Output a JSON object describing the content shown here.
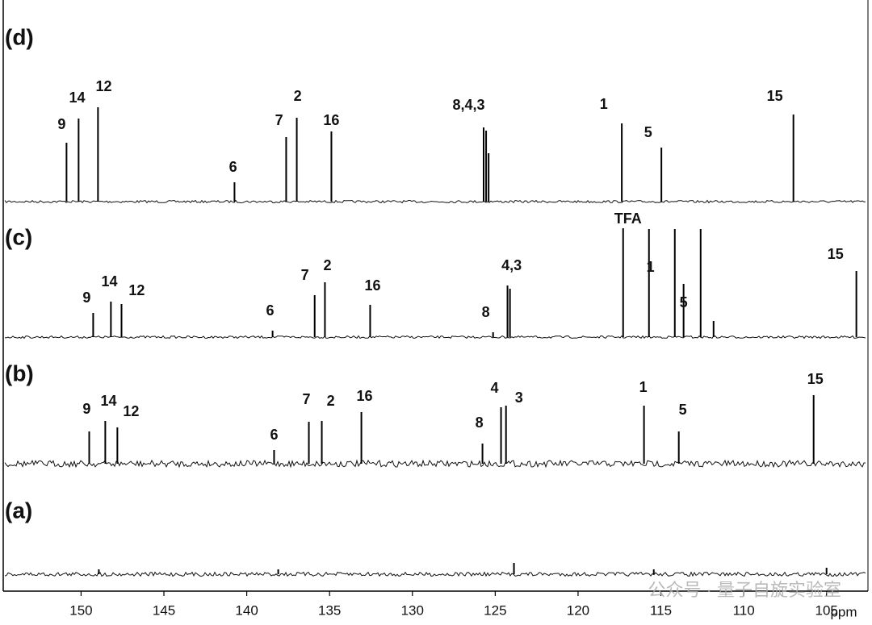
{
  "chart_data": [
    {
      "type": "spectrum",
      "title": "(d)",
      "xlim": [
        154.7,
        102.5
      ],
      "x": [
        150.88,
        150.15,
        148.98,
        140.74,
        137.62,
        136.98,
        134.89,
        125.7,
        125.55,
        125.4,
        117.36,
        114.97,
        107.0
      ],
      "values": [
        73,
        103,
        117,
        24,
        80,
        104,
        87,
        92,
        88,
        60,
        97,
        67,
        108
      ],
      "annotations": [
        {
          "text": "9",
          "x": 151.17,
          "y": 95
        },
        {
          "text": "14",
          "x": 150.24,
          "y": 128
        },
        {
          "text": "12",
          "x": 148.63,
          "y": 142
        },
        {
          "text": "6",
          "x": 140.83,
          "y": 42
        },
        {
          "text": "7",
          "x": 138.05,
          "y": 100
        },
        {
          "text": "2",
          "x": 136.93,
          "y": 130
        },
        {
          "text": "16",
          "x": 134.89,
          "y": 100
        },
        {
          "text": "8,4,3",
          "x": 126.6,
          "y": 119
        },
        {
          "text": "1",
          "x": 118.45,
          "y": 120
        },
        {
          "text": "5",
          "x": 115.77,
          "y": 85
        },
        {
          "text": "15",
          "x": 108.12,
          "y": 130
        }
      ]
    },
    {
      "type": "spectrum",
      "title": "(c)",
      "xlim": [
        154.7,
        102.5
      ],
      "x": [
        149.27,
        148.2,
        147.56,
        138.44,
        135.9,
        135.28,
        132.55,
        125.13,
        124.26,
        124.11,
        117.28,
        115.72,
        114.16,
        112.6,
        113.63,
        111.82,
        103.2
      ],
      "values": [
        30,
        44,
        41,
        8,
        52,
        68,
        40,
        6,
        64,
        60,
        135,
        134,
        134,
        134,
        66,
        20,
        82
      ],
      "annotations": [
        {
          "text": "9",
          "x": 149.66,
          "y": 48
        },
        {
          "text": "14",
          "x": 148.29,
          "y": 68
        },
        {
          "text": "12",
          "x": 146.64,
          "y": 57
        },
        {
          "text": "6",
          "x": 138.59,
          "y": 32
        },
        {
          "text": "7",
          "x": 136.49,
          "y": 76
        },
        {
          "text": "2",
          "x": 135.13,
          "y": 88
        },
        {
          "text": "16",
          "x": 132.4,
          "y": 63
        },
        {
          "text": "8",
          "x": 125.57,
          "y": 30
        },
        {
          "text": "4,3",
          "x": 124.01,
          "y": 88
        },
        {
          "text": "TFA",
          "x": 116.99,
          "y": 146
        },
        {
          "text": "1",
          "x": 115.63,
          "y": 86
        },
        {
          "text": "5",
          "x": 113.63,
          "y": 42
        },
        {
          "text": "15",
          "x": 104.46,
          "y": 102
        }
      ]
    },
    {
      "type": "spectrum",
      "title": "(b)",
      "xlim": [
        154.7,
        102.5
      ],
      "x": [
        149.51,
        148.54,
        147.81,
        138.35,
        136.25,
        135.47,
        133.08,
        125.77,
        124.65,
        124.35,
        116.02,
        113.92,
        105.78
      ],
      "values": [
        40,
        53,
        45,
        17,
        52,
        53,
        64,
        25,
        70,
        72,
        72,
        40,
        85
      ],
      "annotations": [
        {
          "text": "9",
          "x": 149.66,
          "y": 67
        },
        {
          "text": "14",
          "x": 148.34,
          "y": 77
        },
        {
          "text": "12",
          "x": 146.98,
          "y": 64
        },
        {
          "text": "6",
          "x": 138.35,
          "y": 35
        },
        {
          "text": "7",
          "x": 136.4,
          "y": 79
        },
        {
          "text": "2",
          "x": 134.93,
          "y": 77
        },
        {
          "text": "16",
          "x": 132.89,
          "y": 83
        },
        {
          "text": "8",
          "x": 125.96,
          "y": 50
        },
        {
          "text": "4",
          "x": 125.04,
          "y": 93
        },
        {
          "text": "3",
          "x": 123.57,
          "y": 81
        },
        {
          "text": "1",
          "x": 116.07,
          "y": 94
        },
        {
          "text": "5",
          "x": 113.68,
          "y": 66
        },
        {
          "text": "15",
          "x": 105.68,
          "y": 104
        }
      ]
    },
    {
      "type": "spectrum",
      "title": "(a)",
      "xlim": [
        154.7,
        102.5
      ],
      "x": [
        148.93,
        138.1,
        123.87,
        115.43,
        105.0
      ],
      "values": [
        6,
        6,
        14,
        6,
        8
      ],
      "annotations": [],
      "xticks": [
        150,
        145,
        140,
        135,
        130,
        125,
        120,
        115,
        110,
        105
      ],
      "xlabel": "ppm",
      "watermark": "公众号 · 量子自旋实验室"
    }
  ]
}
